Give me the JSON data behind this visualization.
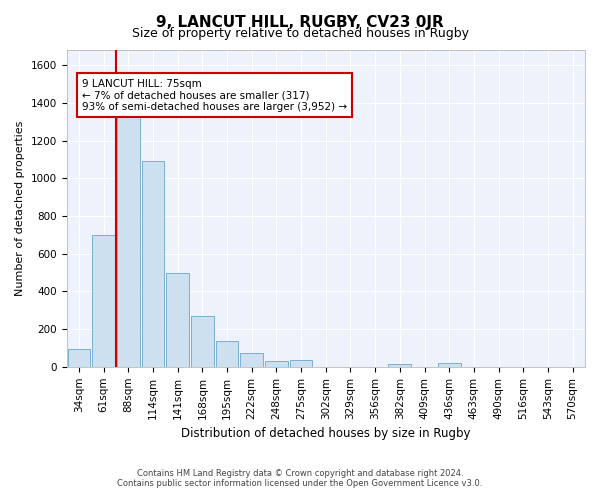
{
  "title": "9, LANCUT HILL, RUGBY, CV23 0JR",
  "subtitle": "Size of property relative to detached houses in Rugby",
  "xlabel": "Distribution of detached houses by size in Rugby",
  "ylabel": "Number of detached properties",
  "bar_color": "#cce0f0",
  "bar_edge_color": "#7ab0d0",
  "background_color": "#eef2fa",
  "grid_color": "#ffffff",
  "fig_background": "#ffffff",
  "categories": [
    "34sqm",
    "61sqm",
    "88sqm",
    "114sqm",
    "141sqm",
    "168sqm",
    "195sqm",
    "222sqm",
    "248sqm",
    "275sqm",
    "302sqm",
    "329sqm",
    "356sqm",
    "382sqm",
    "409sqm",
    "436sqm",
    "463sqm",
    "490sqm",
    "516sqm",
    "543sqm",
    "570sqm"
  ],
  "values": [
    97,
    697,
    1325,
    1090,
    500,
    268,
    137,
    72,
    32,
    35,
    0,
    0,
    0,
    13,
    0,
    20,
    0,
    0,
    0,
    0,
    0
  ],
  "ylim": [
    0,
    1680
  ],
  "yticks": [
    0,
    200,
    400,
    600,
    800,
    1000,
    1200,
    1400,
    1600
  ],
  "property_line_x": 1.5,
  "property_line_color": "#cc0000",
  "annotation_text": "9 LANCUT HILL: 75sqm\n← 7% of detached houses are smaller (317)\n93% of semi-detached houses are larger (3,952) →",
  "annotation_box_color": "#ffffff",
  "annotation_box_edge_color": "#cc0000",
  "footer_line1": "Contains HM Land Registry data © Crown copyright and database right 2024.",
  "footer_line2": "Contains public sector information licensed under the Open Government Licence v3.0.",
  "title_fontsize": 11,
  "subtitle_fontsize": 9,
  "ylabel_fontsize": 8,
  "xlabel_fontsize": 8.5,
  "tick_fontsize": 7.5,
  "annotation_fontsize": 7.5,
  "footer_fontsize": 6
}
